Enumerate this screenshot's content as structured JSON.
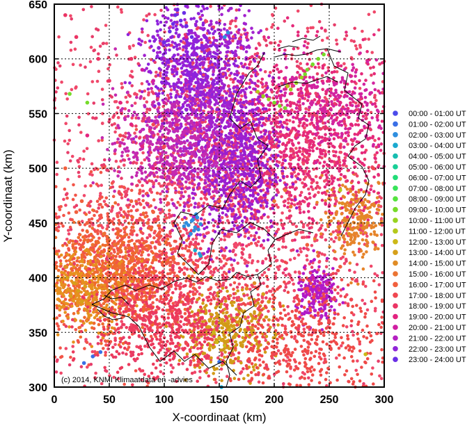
{
  "chart_data": {
    "type": "scatter",
    "title": "",
    "xlabel": "X-coordinaat (km)",
    "ylabel": "Y-coordinaat (km)",
    "xlim": [
      0,
      300
    ],
    "ylim": [
      300,
      650
    ],
    "xticks": [
      "0",
      "50",
      "100",
      "150",
      "200",
      "250",
      "300"
    ],
    "yticks": [
      "300",
      "350",
      "400",
      "450",
      "500",
      "550",
      "600",
      "650"
    ],
    "grid": true,
    "legend_position": "right",
    "credit": "(c) 2014, KNMI Klimaatdata en -advies",
    "series": [
      {
        "name": "00:00 - 01:00 UT",
        "color": "#4b4bea",
        "points": []
      },
      {
        "name": "01:00 - 02:00 UT",
        "color": "#3a6fe6",
        "points": [
          [
            35,
            328
          ],
          [
            42,
            332
          ],
          [
            150,
            323
          ],
          [
            27,
            322
          ]
        ]
      },
      {
        "name": "02:00 - 03:00 UT",
        "color": "#2f8fdf",
        "points": [
          [
            122,
            448
          ],
          [
            125,
            452
          ],
          [
            128,
            446
          ],
          [
            130,
            455
          ],
          [
            127,
            443
          ],
          [
            120,
            450
          ],
          [
            133,
            449
          ],
          [
            124,
            440
          ],
          [
            129,
            458
          ],
          [
            126,
            453
          ],
          [
            118,
            447
          ],
          [
            131,
            444
          ],
          [
            132,
            422
          ],
          [
            158,
            624
          ],
          [
            155,
            620
          ]
        ]
      },
      {
        "name": "03:00 - 04:00 UT",
        "color": "#1aa9cf",
        "points": [
          [
            152,
            300
          ],
          [
            133,
            420
          ],
          [
            128,
            425
          ]
        ]
      },
      {
        "name": "04:00 - 05:00 UT",
        "color": "#17bdb0",
        "points": []
      },
      {
        "name": "05:00 - 06:00 UT",
        "color": "#18cf96",
        "points": []
      },
      {
        "name": "06:00 - 07:00 UT",
        "color": "#22dc78",
        "points": []
      },
      {
        "name": "07:00 - 08:00 UT",
        "color": "#38e35a",
        "points": []
      },
      {
        "name": "08:00 - 09:00 UT",
        "color": "#55e33e",
        "points": []
      },
      {
        "name": "09:00 - 10:00 UT",
        "color": "#76db2a",
        "points": [
          [
            230,
            590
          ],
          [
            235,
            595
          ],
          [
            240,
            600
          ],
          [
            245,
            604
          ],
          [
            228,
            586
          ],
          [
            14,
            568
          ],
          [
            30,
            560
          ],
          [
            200,
            560
          ],
          [
            210,
            555
          ],
          [
            205,
            557
          ]
        ]
      },
      {
        "name": "10:00 - 11:00 UT",
        "color": "#97d31f",
        "points": [
          [
            225,
            583
          ],
          [
            220,
            578
          ],
          [
            215,
            572
          ],
          [
            195,
            563
          ],
          [
            190,
            566
          ]
        ]
      },
      {
        "name": "11:00 - 12:00 UT",
        "color": "#b5c81a",
        "points": [
          [
            212,
            575
          ],
          [
            185,
            570
          ],
          [
            260,
            480
          ]
        ]
      },
      {
        "name": "12:00 - 13:00 UT",
        "color": "#ccb817",
        "points": [
          [
            145,
            350
          ],
          [
            150,
            345
          ],
          [
            155,
            338
          ],
          [
            160,
            352
          ],
          [
            148,
            341
          ],
          [
            283,
            330
          ]
        ]
      },
      {
        "name": "13:00 - 14:00 UT",
        "color": "#d6a01a",
        "points": [
          [
            18,
            395
          ],
          [
            22,
            388
          ],
          [
            28,
            392
          ],
          [
            12,
            400
          ],
          [
            32,
            385
          ],
          [
            140,
            355
          ],
          [
            152,
            343
          ],
          [
            158,
            360
          ],
          [
            165,
            348
          ],
          [
            142,
            338
          ],
          [
            25,
            378
          ],
          [
            15,
            383
          ],
          [
            190,
            385
          ],
          [
            195,
            378
          ]
        ]
      },
      {
        "name": "14:00 - 15:00 UT",
        "color": "#e08c25",
        "points": [
          [
            30,
            370
          ],
          [
            38,
            380
          ],
          [
            45,
            372
          ],
          [
            10,
            410
          ],
          [
            5,
            390
          ],
          [
            270,
            460
          ],
          [
            280,
            455
          ],
          [
            275,
            470
          ],
          [
            285,
            450
          ],
          [
            262,
            468
          ],
          [
            175,
            390
          ],
          [
            182,
            395
          ],
          [
            170,
            380
          ],
          [
            268,
            440
          ]
        ]
      },
      {
        "name": "15:00 - 16:00 UT",
        "color": "#eb7432",
        "points": [
          [
            50,
            420
          ],
          [
            60,
            410
          ],
          [
            55,
            430
          ],
          [
            45,
            440
          ],
          [
            65,
            400
          ],
          [
            40,
            415
          ],
          [
            75,
            425
          ],
          [
            35,
            430
          ],
          [
            200,
            470
          ],
          [
            210,
            480
          ],
          [
            215,
            465
          ]
        ]
      },
      {
        "name": "16:00 - 17:00 UT",
        "color": "#f1603e",
        "points": [
          [
            20,
            460
          ],
          [
            30,
            450
          ],
          [
            25,
            470
          ],
          [
            90,
            460
          ],
          [
            95,
            440
          ],
          [
            85,
            450
          ],
          [
            150,
            470
          ],
          [
            160,
            480
          ],
          [
            220,
            440
          ],
          [
            230,
            430
          ],
          [
            240,
            420
          ],
          [
            260,
            410
          ],
          [
            10,
            500
          ],
          [
            70,
            470
          ]
        ]
      },
      {
        "name": "17:00 - 18:00 UT",
        "color": "#f04750",
        "points": [
          [
            100,
            380
          ],
          [
            110,
            360
          ],
          [
            120,
            340
          ],
          [
            130,
            320
          ],
          [
            200,
            330
          ],
          [
            210,
            350
          ],
          [
            220,
            370
          ],
          [
            230,
            390
          ],
          [
            250,
            360
          ],
          [
            270,
            380
          ],
          [
            100,
            520
          ],
          [
            90,
            540
          ],
          [
            60,
            530
          ],
          [
            290,
            500
          ]
        ]
      },
      {
        "name": "18:00 - 19:00 UT",
        "color": "#eb3464",
        "points": [
          [
            230,
            570
          ],
          [
            240,
            560
          ],
          [
            250,
            550
          ],
          [
            260,
            520
          ],
          [
            270,
            510
          ],
          [
            220,
            530
          ],
          [
            200,
            520
          ],
          [
            180,
            540
          ],
          [
            50,
            580
          ],
          [
            40,
            600
          ],
          [
            20,
            620
          ],
          [
            10,
            640
          ],
          [
            70,
            600
          ]
        ]
      },
      {
        "name": "19:00 - 20:00 UT",
        "color": "#e3237f",
        "points": [
          [
            60,
            560
          ],
          [
            70,
            540
          ],
          [
            80,
            520
          ],
          [
            90,
            500
          ],
          [
            30,
            530
          ],
          [
            250,
            580
          ],
          [
            260,
            560
          ],
          [
            270,
            540
          ],
          [
            280,
            520
          ],
          [
            190,
            600
          ],
          [
            170,
            610
          ],
          [
            140,
            600
          ],
          [
            120,
            620
          ]
        ]
      },
      {
        "name": "20:00 - 21:00 UT",
        "color": "#d01ea2",
        "points": [
          [
            100,
            560
          ],
          [
            110,
            550
          ],
          [
            90,
            580
          ],
          [
            80,
            590
          ],
          [
            130,
            540
          ],
          [
            140,
            520
          ],
          [
            150,
            500
          ],
          [
            160,
            490
          ],
          [
            170,
            480
          ],
          [
            180,
            470
          ],
          [
            235,
            400
          ],
          [
            240,
            390
          ],
          [
            245,
            380
          ],
          [
            232,
            385
          ],
          [
            248,
            395
          ]
        ]
      },
      {
        "name": "21:00 - 22:00 UT",
        "color": "#b520c2",
        "points": [
          [
            120,
            580
          ],
          [
            130,
            570
          ],
          [
            140,
            560
          ],
          [
            150,
            550
          ],
          [
            160,
            540
          ],
          [
            165,
            520
          ],
          [
            170,
            510
          ],
          [
            175,
            500
          ],
          [
            180,
            490
          ],
          [
            110,
            590
          ],
          [
            100,
            600
          ],
          [
            237,
            370
          ],
          [
            243,
            365
          ]
        ]
      },
      {
        "name": "22:00 - 23:00 UT",
        "color": "#9025d8",
        "points": [
          [
            145,
            580
          ],
          [
            150,
            570
          ],
          [
            155,
            560
          ],
          [
            140,
            590
          ],
          [
            135,
            600
          ],
          [
            130,
            610
          ],
          [
            160,
            545
          ],
          [
            165,
            530
          ],
          [
            170,
            525
          ],
          [
            90,
            620
          ],
          [
            95,
            610
          ]
        ]
      },
      {
        "name": "23:00 - 24:00 UT",
        "color": "#6a2ee6",
        "points": [
          [
            110,
            640
          ],
          [
            115,
            635
          ],
          [
            120,
            630
          ],
          [
            112,
            645
          ],
          [
            118,
            642
          ],
          [
            125,
            620
          ],
          [
            105,
            625
          ],
          [
            100,
            615
          ],
          [
            108,
            632
          ]
        ]
      }
    ]
  }
}
